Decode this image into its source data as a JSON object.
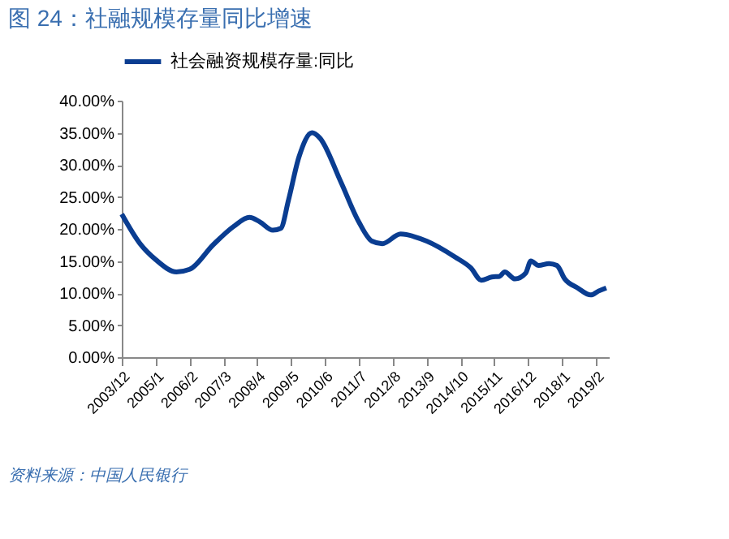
{
  "chart_data": {
    "type": "line",
    "title": "图 24：社融规模存量同比增速",
    "x": [
      "2003-12",
      "2004-07",
      "2005-01",
      "2005-09",
      "2006-02",
      "2006-11",
      "2007-07",
      "2008-01",
      "2008-05",
      "2008-10",
      "2009-01",
      "2009-04",
      "2009-08",
      "2010-01",
      "2010-04",
      "2010-12",
      "2011-07",
      "2011-12",
      "2012-04",
      "2012-11",
      "2013-09",
      "2014-08",
      "2015-02",
      "2015-06",
      "2015-10",
      "2016-01",
      "2016-03",
      "2016-07",
      "2016-11",
      "2017-01",
      "2017-04",
      "2017-08",
      "2017-11",
      "2018-02",
      "2018-07",
      "2018-12",
      "2019-03",
      "2019-06"
    ],
    "series": [
      {
        "name": "社会融资规模存量:同比",
        "color": "#0a3d91",
        "values": [
          22.3,
          17.7,
          15.2,
          13.3,
          13.7,
          17.5,
          20.4,
          21.8,
          21.1,
          19.8,
          20.1,
          24.5,
          31.2,
          35.0,
          34.2,
          27.4,
          21.1,
          18.1,
          17.7,
          19.2,
          18.1,
          15.6,
          13.9,
          12.0,
          12.5,
          12.6,
          13.3,
          12.2,
          13.1,
          15.0,
          14.3,
          14.6,
          14.3,
          12.2,
          10.8,
          9.7,
          10.3,
          10.8
        ]
      }
    ],
    "xlim": [
      "2003-12",
      "2019-07"
    ],
    "xticks": [
      {
        "value": "2003-12",
        "label": "2003/12"
      },
      {
        "value": "2005-01",
        "label": "2005/1"
      },
      {
        "value": "2006-02",
        "label": "2006/2"
      },
      {
        "value": "2007-03",
        "label": "2007/3"
      },
      {
        "value": "2008-04",
        "label": "2008/4"
      },
      {
        "value": "2009-05",
        "label": "2009/5"
      },
      {
        "value": "2010-06",
        "label": "2010/6"
      },
      {
        "value": "2011-07",
        "label": "2011/7"
      },
      {
        "value": "2012-08",
        "label": "2012/8"
      },
      {
        "value": "2013-09",
        "label": "2013/9"
      },
      {
        "value": "2014-10",
        "label": "2014/10"
      },
      {
        "value": "2015-11",
        "label": "2015/11"
      },
      {
        "value": "2016-12",
        "label": "2016/12"
      },
      {
        "value": "2018-01",
        "label": "2018/1"
      },
      {
        "value": "2019-02",
        "label": "2019/2"
      }
    ],
    "ylim": [
      0,
      40
    ],
    "yticks": [
      {
        "value": 0,
        "label": "0.00%"
      },
      {
        "value": 5,
        "label": "5.00%"
      },
      {
        "value": 10,
        "label": "10.00%"
      },
      {
        "value": 15,
        "label": "15.00%"
      },
      {
        "value": 20,
        "label": "20.00%"
      },
      {
        "value": 25,
        "label": "25.00%"
      },
      {
        "value": 30,
        "label": "30.00%"
      },
      {
        "value": 35,
        "label": "35.00%"
      },
      {
        "value": 40,
        "label": "40.00%"
      }
    ],
    "grid": false,
    "legend": "top",
    "marker": "none",
    "line_style": "solid",
    "annotations": [
      "资料来源：中国人民银行"
    ]
  }
}
